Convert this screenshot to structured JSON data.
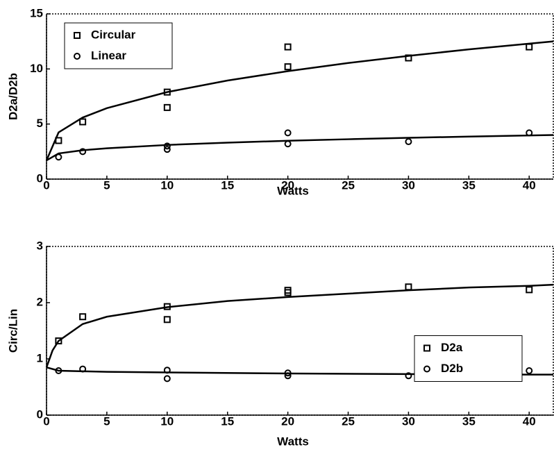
{
  "chart_data": [
    {
      "type": "scatter",
      "xlabel": "Watts",
      "ylabel": "D2a/D2b",
      "xlim": [
        0,
        42
      ],
      "ylim": [
        0,
        15
      ],
      "xticks": [
        0,
        5,
        10,
        15,
        20,
        25,
        30,
        35,
        40
      ],
      "yticks": [
        0,
        5,
        10,
        15
      ],
      "legend_position": "upper left",
      "series": [
        {
          "name": "Circular",
          "marker": "square",
          "color": "#000000",
          "x": [
            1,
            3,
            10,
            10,
            20,
            20,
            30,
            40
          ],
          "values": [
            3.5,
            5.2,
            7.9,
            6.5,
            12,
            10.2,
            11,
            12
          ]
        },
        {
          "name": "Linear",
          "marker": "circle",
          "color": "#000000",
          "x": [
            1,
            3,
            10,
            10,
            20,
            20,
            30,
            40
          ],
          "values": [
            2.0,
            2.5,
            3.0,
            2.7,
            4.2,
            3.2,
            3.4,
            4.2
          ]
        }
      ],
      "fits": [
        {
          "color": "#000000",
          "x": [
            0,
            1,
            3,
            5,
            10,
            15,
            20,
            25,
            30,
            35,
            40,
            42
          ],
          "values": [
            1.7,
            4.24,
            5.59,
            6.44,
            7.9,
            8.95,
            9.8,
            10.54,
            11.19,
            11.78,
            12.3,
            12.5
          ]
        },
        {
          "color": "#000000",
          "x": [
            0,
            1,
            3,
            5,
            10,
            15,
            20,
            25,
            30,
            35,
            40,
            42
          ],
          "values": [
            1.7,
            2.33,
            2.62,
            2.8,
            3.1,
            3.31,
            3.48,
            3.62,
            3.75,
            3.86,
            3.96,
            4.0
          ]
        }
      ]
    },
    {
      "type": "scatter",
      "xlabel": "Watts",
      "ylabel": "Circ/Lin",
      "xlim": [
        0,
        42
      ],
      "ylim": [
        0,
        3
      ],
      "xticks": [
        0,
        5,
        10,
        15,
        20,
        25,
        30,
        35,
        40
      ],
      "yticks": [
        0,
        1,
        2,
        3
      ],
      "legend_position": "center right",
      "series": [
        {
          "name": "D2a",
          "marker": "square",
          "color": "#000000",
          "x": [
            1,
            3,
            10,
            10,
            20,
            20,
            30,
            40
          ],
          "values": [
            1.32,
            1.75,
            1.93,
            1.7,
            2.22,
            2.18,
            2.28,
            2.23
          ]
        },
        {
          "name": "D2b",
          "marker": "circle",
          "color": "#000000",
          "x": [
            1,
            3,
            10,
            10,
            20,
            20,
            30,
            40
          ],
          "values": [
            0.79,
            0.82,
            0.8,
            0.65,
            0.75,
            0.7,
            0.7,
            0.79
          ]
        }
      ],
      "fits": [
        {
          "color": "#000000",
          "x": [
            0,
            0.5,
            1,
            3,
            5,
            10,
            15,
            20,
            25,
            30,
            35,
            40,
            42
          ],
          "values": [
            0.85,
            1.15,
            1.32,
            1.62,
            1.75,
            1.92,
            2.03,
            2.1,
            2.16,
            2.22,
            2.27,
            2.3,
            2.32
          ]
        },
        {
          "color": "#000000",
          "x": [
            0,
            1,
            3,
            5,
            10,
            20,
            30,
            40,
            42
          ],
          "values": [
            0.85,
            0.79,
            0.78,
            0.77,
            0.76,
            0.74,
            0.73,
            0.72,
            0.72
          ]
        }
      ]
    }
  ]
}
